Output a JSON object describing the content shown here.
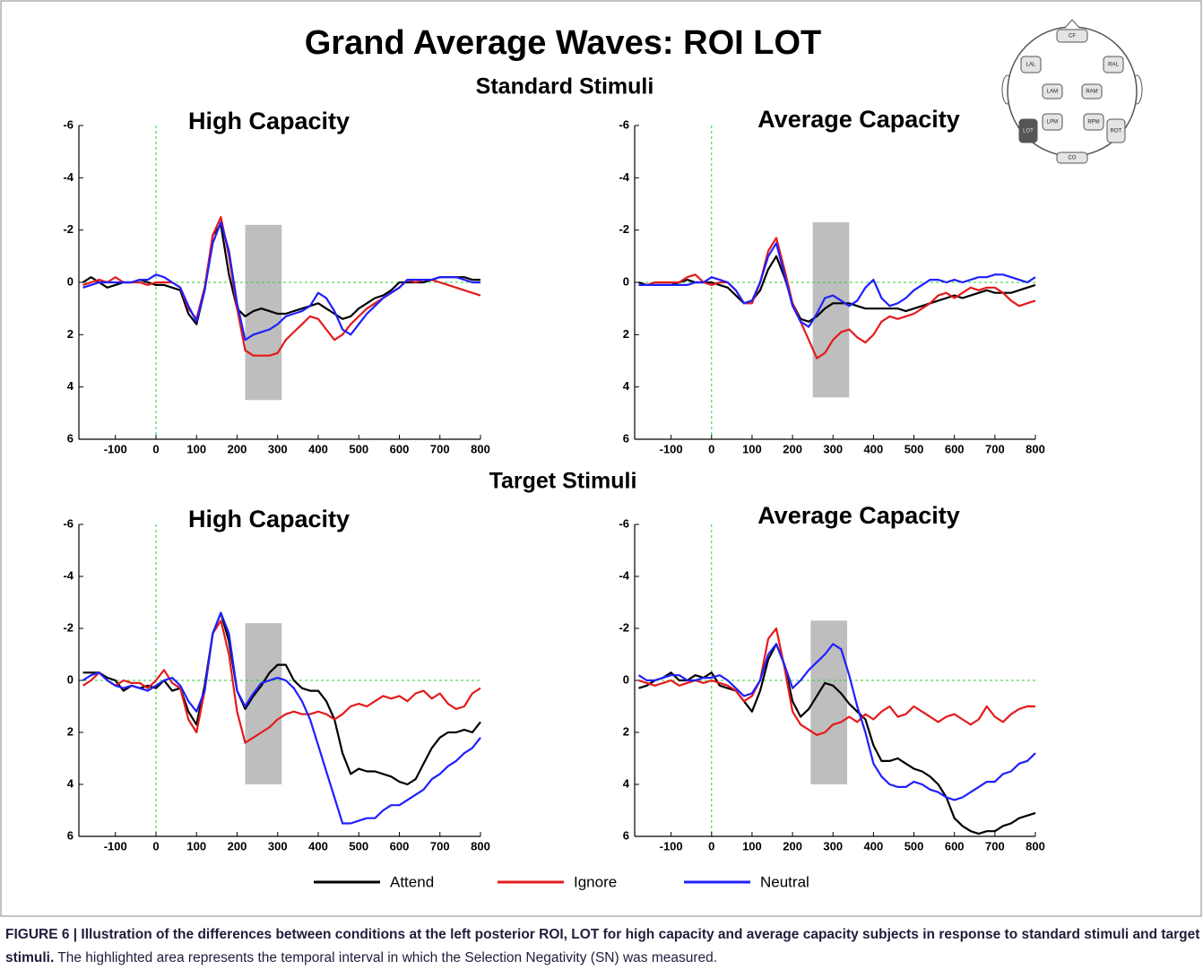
{
  "figure_title": "Grand Average Waves: ROI LOT",
  "section_titles": [
    "Standard Stimuli",
    "Target Stimuli"
  ],
  "head_map": {
    "labels": [
      "CF",
      "LAL",
      "RAL",
      "LAM",
      "RAM",
      "LPM",
      "RPM",
      "LOT",
      "ROT",
      "CO"
    ]
  },
  "chart_data": [
    {
      "type": "line",
      "title": "High Capacity",
      "x": [
        -180,
        -160,
        -140,
        -120,
        -100,
        -80,
        -60,
        -40,
        -20,
        0,
        20,
        40,
        60,
        80,
        100,
        120,
        140,
        160,
        180,
        200,
        220,
        240,
        260,
        280,
        300,
        320,
        340,
        360,
        380,
        400,
        420,
        440,
        460,
        480,
        500,
        520,
        540,
        560,
        580,
        600,
        620,
        640,
        660,
        680,
        700,
        720,
        740,
        760,
        780,
        800
      ],
      "series": [
        {
          "name": "Attend",
          "color": "#000000",
          "values": [
            0,
            -0.2,
            0,
            0.2,
            0.1,
            0,
            0,
            -0.1,
            0,
            0.1,
            0.1,
            0.2,
            0.3,
            1.2,
            1.6,
            0.3,
            -1.8,
            -2.2,
            -0.3,
            1.0,
            1.3,
            1.1,
            1.0,
            1.1,
            1.2,
            1.2,
            1.1,
            1.0,
            0.9,
            0.8,
            1.0,
            1.2,
            1.4,
            1.3,
            1.0,
            0.8,
            0.6,
            0.5,
            0.3,
            0.0,
            0.0,
            0,
            0,
            -0.1,
            -0.2,
            -0.2,
            -0.2,
            -0.2,
            -0.1,
            -0.1
          ]
        },
        {
          "name": "Ignore",
          "color": "#e41a1c",
          "values": [
            0.1,
            0,
            -0.1,
            0,
            -0.2,
            0,
            0,
            0,
            0.1,
            0,
            0,
            0,
            0.2,
            1.0,
            1.4,
            0.2,
            -1.8,
            -2.5,
            -1.0,
            1.0,
            2.6,
            2.8,
            2.8,
            2.8,
            2.7,
            2.2,
            1.9,
            1.6,
            1.3,
            1.4,
            1.8,
            2.2,
            2.0,
            1.6,
            1.3,
            1.0,
            0.8,
            0.6,
            0.4,
            0.2,
            -0.1,
            0,
            -0.1,
            -0.1,
            0,
            0.1,
            0.2,
            0.3,
            0.4,
            0.5
          ]
        },
        {
          "name": "Neutral",
          "color": "#1f1fff",
          "values": [
            0.2,
            0.1,
            0,
            0,
            0,
            0,
            0,
            -0.1,
            -0.1,
            -0.3,
            -0.2,
            0,
            0.2,
            0.9,
            1.5,
            0.3,
            -1.5,
            -2.3,
            -1.2,
            0.8,
            2.2,
            2.0,
            1.9,
            1.8,
            1.6,
            1.3,
            1.2,
            1.1,
            0.9,
            0.4,
            0.6,
            1.1,
            1.8,
            2.0,
            1.6,
            1.2,
            0.9,
            0.6,
            0.4,
            0.2,
            -0.1,
            -0.1,
            -0.1,
            -0.1,
            -0.2,
            -0.2,
            -0.2,
            -0.1,
            0,
            0
          ]
        }
      ],
      "xlim": [
        -190,
        800
      ],
      "ylim": [
        6,
        -6
      ],
      "xticks": [
        -100,
        0,
        100,
        200,
        300,
        400,
        500,
        600,
        700,
        800
      ],
      "yticks": [
        -6,
        -4,
        -2,
        0,
        2,
        4,
        6
      ],
      "shade": {
        "x": [
          220,
          310
        ],
        "y": [
          -2.2,
          4.5
        ]
      }
    },
    {
      "type": "line",
      "title": "Average Capacity",
      "x": [
        -180,
        -160,
        -140,
        -120,
        -100,
        -80,
        -60,
        -40,
        -20,
        0,
        20,
        40,
        60,
        80,
        100,
        120,
        140,
        160,
        180,
        200,
        220,
        240,
        260,
        280,
        300,
        320,
        340,
        360,
        380,
        400,
        420,
        440,
        460,
        480,
        500,
        520,
        540,
        560,
        580,
        600,
        620,
        640,
        660,
        680,
        700,
        720,
        740,
        760,
        780,
        800
      ],
      "series": [
        {
          "name": "Attend",
          "color": "#000000",
          "values": [
            0,
            0.1,
            0.1,
            0.1,
            0.1,
            0,
            -0.1,
            0,
            0,
            0,
            0.1,
            0.2,
            0.5,
            0.8,
            0.7,
            0.3,
            -0.5,
            -1.0,
            -0.2,
            0.8,
            1.4,
            1.5,
            1.3,
            1.0,
            0.8,
            0.8,
            0.8,
            0.9,
            1.0,
            1.0,
            1.0,
            1.0,
            1.0,
            1.1,
            1.0,
            0.9,
            0.8,
            0.7,
            0.6,
            0.5,
            0.6,
            0.5,
            0.4,
            0.3,
            0.4,
            0.4,
            0.4,
            0.3,
            0.2,
            0.1
          ]
        },
        {
          "name": "Ignore",
          "color": "#e41a1c",
          "values": [
            0.1,
            0.1,
            0,
            0,
            0,
            0,
            -0.2,
            -0.3,
            0,
            0.1,
            0,
            0,
            0.3,
            0.8,
            0.8,
            0,
            -1.2,
            -1.7,
            -0.5,
            0.8,
            1.5,
            2.2,
            2.9,
            2.7,
            2.2,
            1.9,
            1.8,
            2.1,
            2.3,
            2.0,
            1.5,
            1.3,
            1.4,
            1.3,
            1.2,
            1.0,
            0.8,
            0.5,
            0.4,
            0.6,
            0.4,
            0.2,
            0.3,
            0.2,
            0.2,
            0.4,
            0.7,
            0.9,
            0.8,
            0.7
          ]
        },
        {
          "name": "Neutral",
          "color": "#1f1fff",
          "values": [
            0.1,
            0.1,
            0.1,
            0.1,
            0.1,
            0.1,
            0.1,
            0,
            0,
            -0.2,
            -0.1,
            0,
            0.3,
            0.8,
            0.7,
            0,
            -1.0,
            -1.5,
            -0.3,
            0.9,
            1.5,
            1.7,
            1.2,
            0.6,
            0.5,
            0.7,
            0.9,
            0.7,
            0.2,
            -0.1,
            0.6,
            0.9,
            0.8,
            0.6,
            0.3,
            0.1,
            -0.1,
            -0.1,
            0,
            -0.1,
            0,
            -0.1,
            -0.2,
            -0.2,
            -0.3,
            -0.3,
            -0.2,
            -0.1,
            0,
            -0.2
          ]
        }
      ],
      "xlim": [
        -190,
        800
      ],
      "ylim": [
        6,
        -6
      ],
      "xticks": [
        -100,
        0,
        100,
        200,
        300,
        400,
        500,
        600,
        700,
        800
      ],
      "yticks": [
        -6,
        -4,
        -2,
        0,
        2,
        4,
        6
      ],
      "shade": {
        "x": [
          250,
          340
        ],
        "y": [
          -2.3,
          4.4
        ]
      }
    },
    {
      "type": "line",
      "title": "High Capacity",
      "x": [
        -180,
        -160,
        -140,
        -120,
        -100,
        -80,
        -60,
        -40,
        -20,
        0,
        20,
        40,
        60,
        80,
        100,
        120,
        140,
        160,
        180,
        200,
        220,
        240,
        260,
        280,
        300,
        320,
        340,
        360,
        380,
        400,
        420,
        440,
        460,
        480,
        500,
        520,
        540,
        560,
        580,
        600,
        620,
        640,
        660,
        680,
        700,
        720,
        740,
        760,
        780,
        800
      ],
      "series": [
        {
          "name": "Attend",
          "color": "#000000",
          "values": [
            -0.3,
            -0.3,
            -0.3,
            -0.1,
            0,
            0.4,
            0.2,
            0.3,
            0.2,
            0.3,
            0,
            0.4,
            0.3,
            1.2,
            1.7,
            0.2,
            -1.8,
            -2.6,
            -1.5,
            0.4,
            1.1,
            0.6,
            0.2,
            -0.3,
            -0.6,
            -0.6,
            0,
            0.3,
            0.4,
            0.4,
            0.8,
            1.5,
            2.8,
            3.6,
            3.4,
            3.5,
            3.5,
            3.6,
            3.7,
            3.9,
            4.0,
            3.8,
            3.2,
            2.6,
            2.2,
            2.0,
            2.0,
            1.9,
            2.0,
            1.6
          ]
        },
        {
          "name": "Ignore",
          "color": "#e41a1c",
          "values": [
            0.2,
            0,
            -0.3,
            0,
            0.2,
            0,
            0.1,
            0.1,
            0.3,
            0,
            -0.4,
            0.1,
            0.3,
            1.5,
            2.0,
            0.4,
            -1.8,
            -2.3,
            -1.0,
            1.2,
            2.4,
            2.2,
            2.0,
            1.8,
            1.5,
            1.3,
            1.2,
            1.3,
            1.3,
            1.2,
            1.3,
            1.5,
            1.3,
            1.0,
            0.9,
            1.0,
            0.8,
            0.6,
            0.7,
            0.6,
            0.8,
            0.5,
            0.4,
            0.7,
            0.5,
            0.9,
            1.1,
            1.0,
            0.5,
            0.3
          ]
        },
        {
          "name": "Neutral",
          "color": "#1f1fff",
          "values": [
            0,
            -0.2,
            -0.3,
            0,
            0.2,
            0.3,
            0.2,
            0.3,
            0.4,
            0.2,
            0,
            -0.1,
            0.2,
            0.8,
            1.2,
            0.4,
            -1.8,
            -2.6,
            -1.8,
            0.4,
            1.0,
            0.5,
            0.1,
            0,
            -0.1,
            0,
            0.3,
            0.8,
            1.5,
            2.5,
            3.5,
            4.5,
            5.5,
            5.5,
            5.4,
            5.3,
            5.3,
            5.0,
            4.8,
            4.8,
            4.6,
            4.4,
            4.2,
            3.8,
            3.6,
            3.3,
            3.1,
            2.8,
            2.6,
            2.2
          ]
        }
      ],
      "xlim": [
        -190,
        800
      ],
      "ylim": [
        6,
        -6
      ],
      "xticks": [
        -100,
        0,
        100,
        200,
        300,
        400,
        500,
        600,
        700,
        800
      ],
      "yticks": [
        -6,
        -4,
        -2,
        0,
        2,
        4,
        6
      ],
      "shade": {
        "x": [
          220,
          310
        ],
        "y": [
          -2.2,
          4.0
        ]
      }
    },
    {
      "type": "line",
      "title": "Average Capacity",
      "x": [
        -180,
        -160,
        -140,
        -120,
        -100,
        -80,
        -60,
        -40,
        -20,
        0,
        20,
        40,
        60,
        80,
        100,
        120,
        140,
        160,
        180,
        200,
        220,
        240,
        260,
        280,
        300,
        320,
        340,
        360,
        380,
        400,
        420,
        440,
        460,
        480,
        500,
        520,
        540,
        560,
        580,
        600,
        620,
        640,
        660,
        680,
        700,
        720,
        740,
        760,
        780,
        800
      ],
      "series": [
        {
          "name": "Attend",
          "color": "#000000",
          "values": [
            0.3,
            0.2,
            0,
            -0.1,
            -0.3,
            0,
            0,
            -0.2,
            -0.1,
            -0.3,
            0.2,
            0.3,
            0.4,
            0.8,
            1.2,
            0.4,
            -0.8,
            -1.4,
            -0.6,
            0.8,
            1.4,
            1.1,
            0.6,
            0.1,
            0.2,
            0.5,
            0.9,
            1.2,
            1.5,
            2.5,
            3.1,
            3.1,
            3.0,
            3.2,
            3.4,
            3.5,
            3.7,
            4.0,
            4.5,
            5.3,
            5.6,
            5.8,
            5.9,
            5.8,
            5.8,
            5.6,
            5.5,
            5.3,
            5.2,
            5.1
          ]
        },
        {
          "name": "Ignore",
          "color": "#e41a1c",
          "values": [
            0,
            0.1,
            0.2,
            0.1,
            0,
            0.2,
            0.1,
            0,
            0.1,
            0,
            0.1,
            0.2,
            0.4,
            0.8,
            0.6,
            0,
            -1.6,
            -2.0,
            -0.5,
            1.2,
            1.7,
            1.9,
            2.1,
            2.0,
            1.7,
            1.6,
            1.4,
            1.6,
            1.3,
            1.5,
            1.2,
            1.0,
            1.4,
            1.3,
            1.0,
            1.2,
            1.4,
            1.6,
            1.4,
            1.3,
            1.5,
            1.7,
            1.5,
            1.0,
            1.4,
            1.6,
            1.3,
            1.1,
            1.0,
            1.0
          ]
        },
        {
          "name": "Neutral",
          "color": "#1f1fff",
          "values": [
            -0.2,
            0,
            0,
            -0.1,
            -0.2,
            -0.2,
            0,
            0,
            -0.1,
            -0.1,
            -0.2,
            0,
            0.3,
            0.6,
            0.5,
            0,
            -1.0,
            -1.4,
            -0.6,
            0.3,
            0.0,
            -0.4,
            -0.7,
            -1.0,
            -1.4,
            -1.2,
            -0.2,
            1.0,
            2.0,
            3.2,
            3.7,
            4.0,
            4.1,
            4.1,
            3.9,
            4.0,
            4.2,
            4.3,
            4.5,
            4.6,
            4.5,
            4.3,
            4.1,
            3.9,
            3.9,
            3.6,
            3.5,
            3.2,
            3.1,
            2.8
          ]
        }
      ],
      "xlim": [
        -190,
        800
      ],
      "ylim": [
        6,
        -6
      ],
      "xticks": [
        -100,
        0,
        100,
        200,
        300,
        400,
        500,
        600,
        700,
        800
      ],
      "yticks": [
        -6,
        -4,
        -2,
        0,
        2,
        4,
        6
      ],
      "shade": {
        "x": [
          245,
          335
        ],
        "y": [
          -2.3,
          4.0
        ]
      }
    }
  ],
  "caption": {
    "bold": "FIGURE 6 | Illustration of the differences between conditions at the left posterior ROI, LOT for high capacity and average capacity subjects in response to standard stimuli and target stimuli.",
    "text": "The highlighted area represents the temporal interval in which the Selection Negativity (SN) was measured."
  }
}
